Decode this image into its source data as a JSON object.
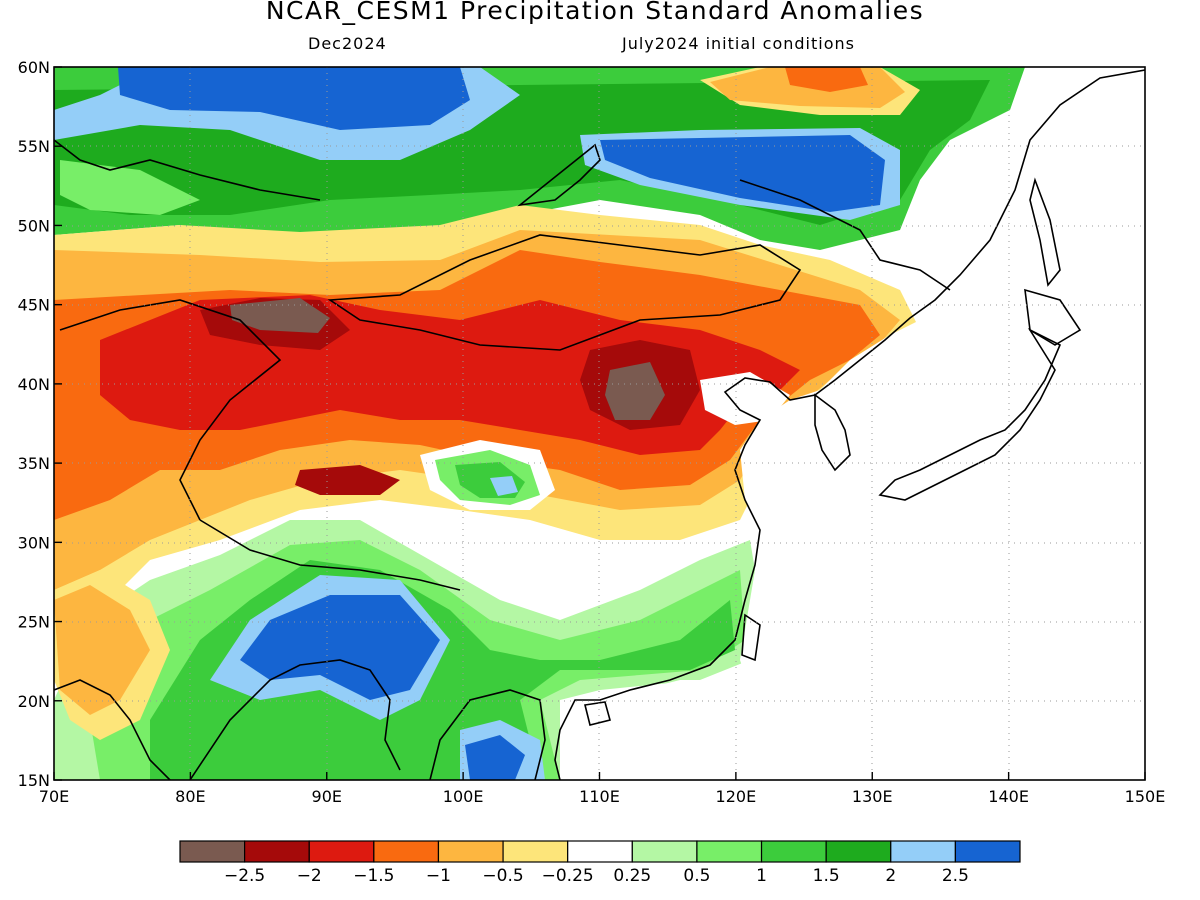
{
  "title": "NCAR_CESM1 Precipitation Standard Anomalies",
  "valid_month": "Dec2024",
  "init_conditions": "July2024 initial conditions",
  "map": {
    "lon_range": [
      70,
      150
    ],
    "lat_range": [
      15,
      60
    ],
    "lon_ticks": [
      "70E",
      "80E",
      "90E",
      "100E",
      "110E",
      "120E",
      "130E",
      "140E",
      "150E"
    ],
    "lat_ticks": [
      "60N",
      "55N",
      "50N",
      "45N",
      "40N",
      "35N",
      "30N",
      "25N",
      "20N",
      "15N"
    ],
    "gridlines": "dotted"
  },
  "colorbar": {
    "colors": [
      "#7a5a50",
      "#a50a0a",
      "#dd1a10",
      "#f96a10",
      "#fdb640",
      "#fde57a",
      "#ffffff",
      "#b4f7a4",
      "#78ee68",
      "#3ccc3c",
      "#1eab1e",
      "#94cef8",
      "#1664d2"
    ],
    "labels": [
      "−2.5",
      "−2",
      "−1.5",
      "−1",
      "−0.5",
      "−0.25",
      "0.25",
      "0.5",
      "1",
      "1.5",
      "2",
      "2.5"
    ]
  }
}
